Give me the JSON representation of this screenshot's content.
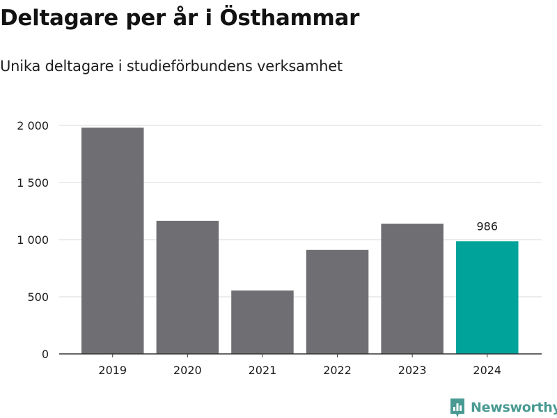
{
  "header": {
    "title": "Deltagare per år i Östhammar",
    "subtitle": "Unika deltagare i studieförbundens verksamhet"
  },
  "brand": {
    "name": "Newsworthy",
    "icon": "newsworthy-chart-icon",
    "color": "#4a9a94"
  },
  "colors": {
    "bar": "#6f6e73",
    "highlight": "#00a39a",
    "grid": "#d9d9d9",
    "axis": "#333333",
    "text": "#1a1a1a"
  },
  "chart_data": {
    "type": "bar",
    "categories": [
      "2019",
      "2020",
      "2021",
      "2022",
      "2023",
      "2024"
    ],
    "values": [
      1980,
      1165,
      555,
      910,
      1140,
      986
    ],
    "highlight_index": 5,
    "data_labels": [
      {
        "index": 5,
        "text": "986"
      }
    ],
    "ylim": [
      0,
      2000
    ],
    "yticks": [
      0,
      500,
      1000,
      1500,
      2000
    ],
    "ytick_labels": [
      "0",
      "500",
      "1 000",
      "1 500",
      "2 000"
    ],
    "grid": true,
    "title": "Deltagare per år i Östhammar",
    "subtitle": "Unika deltagare i studieförbundens verksamhet",
    "xlabel": "",
    "ylabel": ""
  }
}
